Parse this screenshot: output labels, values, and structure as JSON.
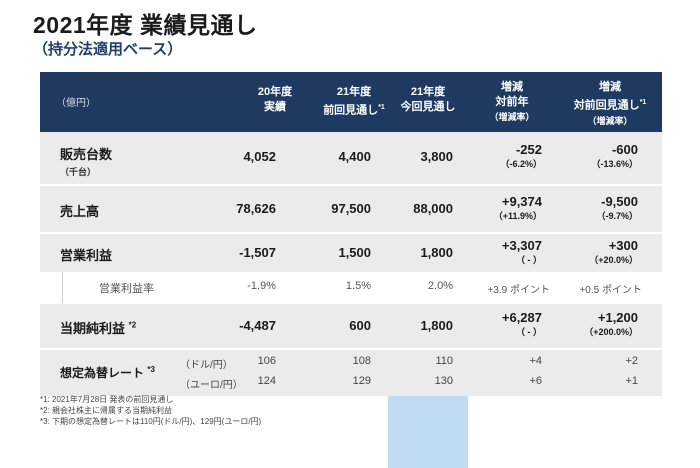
{
  "title": "2021年度 業績見通し",
  "subtitle": "（持分法適用ベース）",
  "header": {
    "unit": "（億円）",
    "col1": [
      "20年度",
      "実績"
    ],
    "col2": [
      "21年度",
      "前回見通し"
    ],
    "col2_sup": "*1",
    "col3": [
      "21年度",
      "今回見通し"
    ],
    "col4": [
      "増減",
      "対前年",
      "（増減率）"
    ],
    "col5": [
      "増減",
      "対前回見通し"
    ],
    "col5_sup": "*1",
    "col5_sub": "（増減率）"
  },
  "rows": [
    {
      "label": "販売台数",
      "label_sub": "（千台）",
      "c1": "4,052",
      "c2": "4,400",
      "c3": "3,800",
      "c4": "-252",
      "c4s": "（-6.2%）",
      "c5": "-600",
      "c5s": "（-13.6%）"
    },
    {
      "label": "売上高",
      "c1": "78,626",
      "c2": "97,500",
      "c3": "88,000",
      "c4": "+9,374",
      "c4s": "（+11.9%）",
      "c5": "-9,500",
      "c5s": "（-9.7%）"
    },
    {
      "label": "営業利益",
      "c1": "-1,507",
      "c2": "1,500",
      "c3": "1,800",
      "c4": "+3,307",
      "c4s": "（ - ）",
      "c5": "+300",
      "c5s": "（+20.0%）"
    },
    {
      "label": "営業利益率",
      "c1": "-1.9%",
      "c2": "1.5%",
      "c3": "2.0%",
      "c4": "+3.9 ポイント",
      "c5": "+0.5 ポイント"
    },
    {
      "label": "当期純利益",
      "label_sup": "*2",
      "c1": "-4,487",
      "c2": "600",
      "c3": "1,800",
      "c4": "+6,287",
      "c4s": "（ - ）",
      "c5": "+1,200",
      "c5s": "（+200.0%）"
    }
  ],
  "fx": {
    "label": "想定為替レート",
    "label_sup": "*3",
    "usd": {
      "unit": "（ドル/円）",
      "c1": "106",
      "c2": "108",
      "c3": "110",
      "c4": "+4",
      "c5": "+2"
    },
    "eur": {
      "unit": "（ユーロ/円）",
      "c1": "124",
      "c2": "129",
      "c3": "130",
      "c4": "+6",
      "c5": "+1"
    }
  },
  "notes": [
    "*1: 2021年7月28日 発表の前回見通し",
    "*2: 親会社株主に帰属する当期純利益",
    "*3: 下期の想定為替レートは110円(ドル/円)、129円(ユーロ/円)"
  ],
  "colors": {
    "header_bg": "#1f3a60",
    "highlight": "#bfdaf3",
    "row_bg": "#ebebeb",
    "subtitle": "#1f3f6e"
  }
}
